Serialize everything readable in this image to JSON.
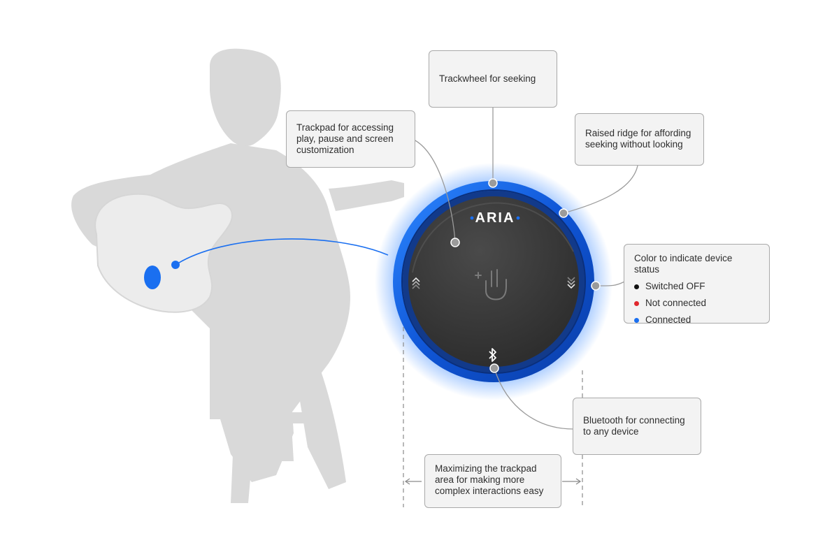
{
  "device": {
    "brand": "ARIA",
    "ring_color": "#1565e0",
    "glow_color": "#3d8bff",
    "face_color": "#3a3a3a",
    "icons": [
      "touch-gesture-icon",
      "chevron-up-icon",
      "chevron-down-icon",
      "bluetooth-icon"
    ]
  },
  "callouts": {
    "trackwheel": "Trackwheel for seeking",
    "trackpad": "Trackpad for accessing\nplay, pause and screen\ncustomization",
    "ridge": "Raised ridge for affording\nseeking without looking",
    "status": {
      "title": "Color to indicate device status",
      "items": [
        {
          "label": "Switched OFF",
          "color": "#111111"
        },
        {
          "label": "Not connected",
          "color": "#e0282e"
        },
        {
          "label": "Connected",
          "color": "#1a6ff0"
        }
      ]
    },
    "bluetooth": "Bluetooth for connecting\nto any device",
    "maximize": "Maximizing the trackpad\narea for making more\ncomplex interactions easy"
  }
}
